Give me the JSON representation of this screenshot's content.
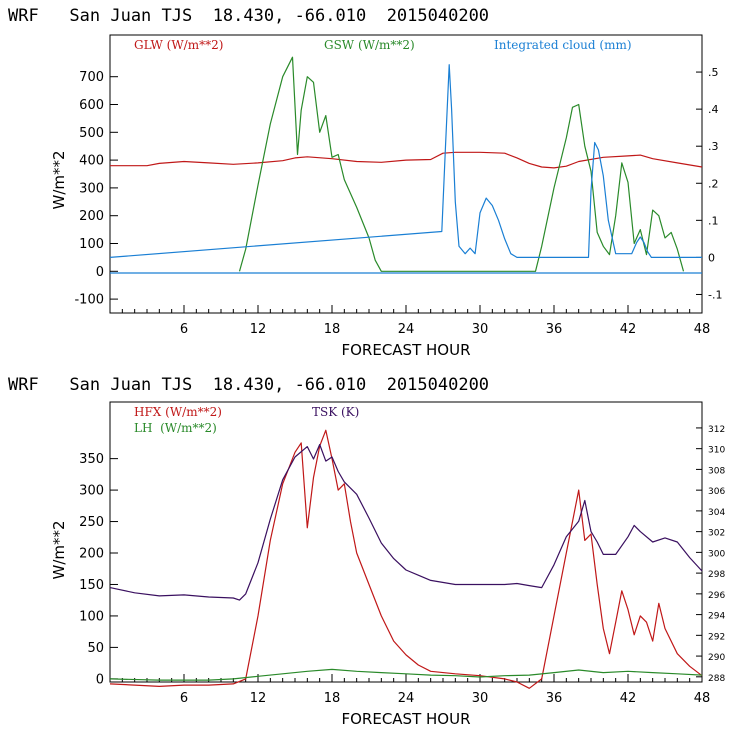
{
  "charts": [
    {
      "title": "WRF   San Juan TJS  18.430, -66.010  2015040200",
      "xlabel": "FORECAST HOUR",
      "ylabel": "W/m**2",
      "x_ticks": [
        "6",
        "12",
        "18",
        "24",
        "30",
        "36",
        "42",
        "48"
      ],
      "y_ticks": [
        "700",
        "600",
        "500",
        "400",
        "300",
        "200",
        "100",
        "0",
        "-100"
      ],
      "right_ticks": [
        ".5",
        ".4",
        ".3",
        ".2",
        ".1",
        "0",
        "-.1"
      ],
      "legend": [
        {
          "label": "GLW (W/m**2)",
          "color": "#c01818"
        },
        {
          "label": "GSW (W/m**2)",
          "color": "#2a8a2a"
        },
        {
          "label": "Integrated cloud (mm)",
          "color": "#1a7fd4"
        }
      ]
    },
    {
      "title": "WRF   San Juan TJS  18.430, -66.010  2015040200",
      "xlabel": "FORECAST HOUR",
      "ylabel": "W/m**2",
      "x_ticks": [
        "6",
        "12",
        "18",
        "24",
        "30",
        "36",
        "42",
        "48"
      ],
      "y_ticks": [
        "350",
        "300",
        "250",
        "200",
        "150",
        "100",
        "50",
        "0"
      ],
      "right_ticks": [
        "312",
        "310",
        "308",
        "306",
        "304",
        "302",
        "300",
        "298",
        "296",
        "294",
        "292",
        "290",
        "288"
      ],
      "legend": [
        {
          "label": "HFX (W/m**2)",
          "color": "#c01818"
        },
        {
          "label": "LH  (W/m**2)",
          "color": "#2a8a2a"
        },
        {
          "label": "TSK (K)",
          "color": "#3a1060"
        }
      ]
    }
  ],
  "chart_data": [
    {
      "type": "line",
      "title": "WRF   San Juan TJS  18.430, -66.010  2015040200",
      "xlabel": "FORECAST HOUR",
      "ylabel": "W/m**2",
      "xlim": [
        0,
        48
      ],
      "ylim": [
        -150,
        850
      ],
      "y2lim": [
        -0.15,
        0.6
      ],
      "series": [
        {
          "name": "GLW (W/m**2)",
          "axis": "left",
          "color": "#c01818",
          "x": [
            0,
            3,
            4,
            6,
            8,
            10,
            12,
            14,
            15,
            16,
            18,
            20,
            22,
            24,
            26,
            27,
            28,
            30,
            32,
            33,
            34,
            35,
            36,
            37,
            38,
            40,
            42,
            43,
            44,
            46,
            48
          ],
          "y": [
            380,
            380,
            388,
            395,
            390,
            385,
            390,
            398,
            408,
            412,
            405,
            395,
            392,
            400,
            402,
            425,
            428,
            428,
            425,
            408,
            388,
            375,
            372,
            378,
            395,
            410,
            415,
            418,
            405,
            390,
            375
          ]
        },
        {
          "name": "GSW (W/m**2)",
          "axis": "left",
          "color": "#2a8a2a",
          "x": [
            10.5,
            11,
            12,
            13,
            14,
            14.8,
            15.2,
            15.5,
            16,
            16.5,
            17,
            17.5,
            18,
            18.5,
            19,
            20,
            21,
            21.5,
            22,
            22.5,
            34.5,
            35,
            36,
            37,
            37.5,
            38,
            38.5,
            39,
            39.5,
            40,
            40.5,
            41,
            41.5,
            42,
            42.5,
            43,
            43.5,
            44,
            44.5,
            45,
            45.5,
            46,
            46.5
          ],
          "y": [
            0,
            80,
            310,
            530,
            700,
            770,
            420,
            580,
            700,
            680,
            500,
            560,
            410,
            420,
            330,
            230,
            120,
            40,
            0,
            0,
            0,
            90,
            300,
            480,
            590,
            600,
            450,
            360,
            140,
            90,
            60,
            200,
            390,
            320,
            100,
            150,
            60,
            220,
            200,
            120,
            140,
            80,
            0
          ]
        },
        {
          "name": "Integrated cloud (mm)",
          "axis": "right",
          "color": "#1a7fd4",
          "x": [
            0,
            26.9,
            27.2,
            27.5,
            27.7,
            28,
            28.3,
            28.8,
            29.2,
            29.6,
            30,
            30.5,
            31,
            31.5,
            32,
            32.5,
            33,
            38.8,
            39,
            39.3,
            39.6,
            40,
            40.4,
            41,
            42.3,
            42.7,
            43,
            43.3,
            43.6,
            43.9,
            48
          ],
          "y": [
            0,
            0.07,
            0.3,
            0.52,
            0.4,
            0.15,
            0.03,
            0.01,
            0.025,
            0.01,
            0.12,
            0.16,
            0.14,
            0.1,
            0.05,
            0.01,
            0,
            0,
            0.18,
            0.31,
            0.29,
            0.22,
            0.1,
            0.01,
            0.01,
            0.04,
            0.055,
            0.04,
            0.015,
            0,
            0
          ]
        }
      ]
    },
    {
      "type": "line",
      "title": "WRF   San Juan TJS  18.430, -66.010  2015040200",
      "xlabel": "FORECAST HOUR",
      "ylabel": "W/m**2",
      "xlim": [
        0,
        48
      ],
      "ylim": [
        -5,
        440
      ],
      "y2lim": [
        287.5,
        314.5
      ],
      "series": [
        {
          "name": "HFX (W/m**2)",
          "axis": "left",
          "color": "#c01818",
          "x": [
            0,
            2,
            4,
            6,
            8,
            10,
            11,
            12,
            13,
            14,
            15,
            15.5,
            16,
            16.5,
            17,
            17.5,
            18,
            18.5,
            19,
            19.5,
            20,
            21,
            22,
            23,
            24,
            25,
            26,
            28,
            30,
            32,
            33,
            34,
            35,
            36,
            37,
            37.5,
            38,
            38.5,
            39,
            39.5,
            40,
            40.5,
            41,
            41.5,
            42,
            42.5,
            43,
            43.5,
            44,
            44.5,
            45,
            46,
            47,
            48
          ],
          "y": [
            -8,
            -10,
            -12,
            -10,
            -10,
            -8,
            0,
            100,
            220,
            310,
            360,
            375,
            240,
            320,
            370,
            395,
            350,
            300,
            310,
            250,
            200,
            150,
            100,
            60,
            38,
            22,
            12,
            8,
            5,
            0,
            -5,
            -15,
            0,
            100,
            200,
            250,
            300,
            220,
            230,
            150,
            80,
            40,
            90,
            140,
            110,
            70,
            100,
            90,
            60,
            120,
            80,
            40,
            20,
            5
          ]
        },
        {
          "name": "LH  (W/m**2)",
          "axis": "left",
          "color": "#2a8a2a",
          "x": [
            0,
            4,
            8,
            10,
            12,
            14,
            16,
            18,
            20,
            22,
            24,
            26,
            28,
            30,
            32,
            34,
            36,
            38,
            40,
            42,
            44,
            46,
            48
          ],
          "y": [
            0,
            -2,
            -2,
            0,
            4,
            8,
            12,
            15,
            12,
            10,
            8,
            6,
            5,
            3,
            5,
            6,
            10,
            14,
            10,
            12,
            10,
            8,
            6
          ]
        },
        {
          "name": "TSK (K)",
          "axis": "right",
          "color": "#3a1060",
          "x": [
            0,
            2,
            4,
            6,
            8,
            10,
            10.5,
            11,
            12,
            13,
            14,
            15,
            16,
            16.5,
            17,
            17.5,
            18,
            18.5,
            19,
            20,
            21,
            22,
            23,
            24,
            25,
            26,
            28,
            30,
            32,
            33,
            34,
            35,
            36,
            37,
            38,
            38.5,
            39,
            39.5,
            40,
            41,
            42,
            42.5,
            43,
            44,
            45,
            46,
            47,
            48
          ],
          "y": [
            296.6,
            296.1,
            295.8,
            295.9,
            295.7,
            295.6,
            295.4,
            296.0,
            299.0,
            303.2,
            307.0,
            309.2,
            310.2,
            309.0,
            310.4,
            308.8,
            309.2,
            307.8,
            306.8,
            305.6,
            303.3,
            300.9,
            299.4,
            298.3,
            297.8,
            297.3,
            296.9,
            296.9,
            296.9,
            297.0,
            296.8,
            296.6,
            298.8,
            301.5,
            303.0,
            305.0,
            302.0,
            301.0,
            299.8,
            299.8,
            301.5,
            302.6,
            302.0,
            301.0,
            301.4,
            301.0,
            299.5,
            298.2
          ]
        }
      ]
    }
  ]
}
